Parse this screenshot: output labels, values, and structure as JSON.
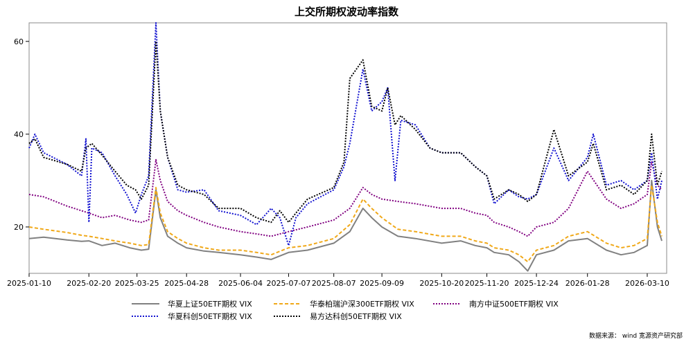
{
  "chart_data": {
    "type": "line",
    "title": "上交所期权波动率指数",
    "xlabel": "",
    "ylabel": "",
    "ylim": [
      10,
      64
    ],
    "yticks": [
      20,
      40,
      60
    ],
    "grid": false,
    "legend_position": "bottom",
    "x_ticks": [
      "2025-01-10",
      "2025-02-20",
      "2025-03-25",
      "2025-04-28",
      "2025-06-04",
      "2025-07-07",
      "2025-08-07",
      "2025-09-09",
      "2025-10-20",
      "2025-11-20",
      "2025-12-24",
      "2026-01-28",
      "2026-03-10"
    ],
    "x_range": [
      "2025-01-10",
      "2026-03-20"
    ],
    "source_note": "数据来源： wind  宽源资产研究部",
    "series": [
      {
        "name": "华夏上证50ETF期权 VIX",
        "color": "#808080",
        "dash": "solid",
        "points": [
          [
            "2025-01-10",
            17.5
          ],
          [
            "2025-01-20",
            17.8
          ],
          [
            "2025-02-05",
            17.2
          ],
          [
            "2025-02-15",
            16.9
          ],
          [
            "2025-02-20",
            17.0
          ],
          [
            "2025-03-01",
            16.0
          ],
          [
            "2025-03-10",
            16.5
          ],
          [
            "2025-03-20",
            15.5
          ],
          [
            "2025-03-28",
            15.0
          ],
          [
            "2025-04-02",
            15.2
          ],
          [
            "2025-04-07",
            28.0
          ],
          [
            "2025-04-10",
            22.0
          ],
          [
            "2025-04-15",
            18.0
          ],
          [
            "2025-04-22",
            16.5
          ],
          [
            "2025-04-28",
            15.5
          ],
          [
            "2025-05-10",
            14.8
          ],
          [
            "2025-05-20",
            14.5
          ],
          [
            "2025-06-04",
            14.0
          ],
          [
            "2025-06-15",
            13.5
          ],
          [
            "2025-06-25",
            13.0
          ],
          [
            "2025-07-07",
            14.5
          ],
          [
            "2025-07-20",
            15.0
          ],
          [
            "2025-08-07",
            16.5
          ],
          [
            "2025-08-18",
            19.0
          ],
          [
            "2025-08-27",
            24.0
          ],
          [
            "2025-09-02",
            22.0
          ],
          [
            "2025-09-09",
            20.0
          ],
          [
            "2025-09-20",
            18.0
          ],
          [
            "2025-10-02",
            17.5
          ],
          [
            "2025-10-20",
            16.5
          ],
          [
            "2025-11-02",
            17.0
          ],
          [
            "2025-11-12",
            16.0
          ],
          [
            "2025-11-20",
            15.5
          ],
          [
            "2025-11-25",
            14.5
          ],
          [
            "2025-12-05",
            14.0
          ],
          [
            "2025-12-12",
            12.5
          ],
          [
            "2025-12-18",
            10.5
          ],
          [
            "2025-12-24",
            14.0
          ],
          [
            "2026-01-05",
            15.0
          ],
          [
            "2026-01-15",
            17.0
          ],
          [
            "2026-01-28",
            17.5
          ],
          [
            "2026-02-10",
            15.0
          ],
          [
            "2026-02-20",
            14.0
          ],
          [
            "2026-03-01",
            14.5
          ],
          [
            "2026-03-10",
            16.0
          ],
          [
            "2026-03-13",
            30.0
          ],
          [
            "2026-03-17",
            20.0
          ],
          [
            "2026-03-20",
            17.0
          ]
        ]
      },
      {
        "name": "华泰柏瑞沪深300ETF期权 VIX",
        "color": "#F0A818",
        "dash": "5,3",
        "points": [
          [
            "2025-01-10",
            20.0
          ],
          [
            "2025-01-20",
            19.5
          ],
          [
            "2025-02-05",
            18.8
          ],
          [
            "2025-02-15",
            18.2
          ],
          [
            "2025-02-20",
            18.0
          ],
          [
            "2025-03-01",
            17.5
          ],
          [
            "2025-03-10",
            17.0
          ],
          [
            "2025-03-20",
            16.5
          ],
          [
            "2025-03-28",
            16.0
          ],
          [
            "2025-04-02",
            16.2
          ],
          [
            "2025-04-07",
            28.5
          ],
          [
            "2025-04-10",
            23.0
          ],
          [
            "2025-04-15",
            19.0
          ],
          [
            "2025-04-22",
            17.5
          ],
          [
            "2025-04-28",
            16.5
          ],
          [
            "2025-05-10",
            15.5
          ],
          [
            "2025-05-20",
            15.0
          ],
          [
            "2025-06-04",
            15.0
          ],
          [
            "2025-06-15",
            14.5
          ],
          [
            "2025-06-25",
            14.0
          ],
          [
            "2025-07-07",
            15.5
          ],
          [
            "2025-07-20",
            16.0
          ],
          [
            "2025-08-07",
            17.5
          ],
          [
            "2025-08-18",
            20.5
          ],
          [
            "2025-08-27",
            26.0
          ],
          [
            "2025-09-02",
            24.0
          ],
          [
            "2025-09-09",
            22.0
          ],
          [
            "2025-09-20",
            19.5
          ],
          [
            "2025-10-02",
            19.0
          ],
          [
            "2025-10-20",
            18.0
          ],
          [
            "2025-11-02",
            18.0
          ],
          [
            "2025-11-12",
            17.0
          ],
          [
            "2025-11-20",
            16.5
          ],
          [
            "2025-11-25",
            15.5
          ],
          [
            "2025-12-05",
            15.0
          ],
          [
            "2025-12-12",
            14.0
          ],
          [
            "2025-12-18",
            12.5
          ],
          [
            "2025-12-24",
            15.0
          ],
          [
            "2026-01-05",
            16.0
          ],
          [
            "2026-01-15",
            18.0
          ],
          [
            "2026-01-28",
            19.0
          ],
          [
            "2026-02-10",
            16.5
          ],
          [
            "2026-02-20",
            15.5
          ],
          [
            "2026-03-01",
            16.0
          ],
          [
            "2026-03-10",
            17.5
          ],
          [
            "2026-03-13",
            29.0
          ],
          [
            "2026-03-17",
            21.0
          ],
          [
            "2026-03-20",
            18.0
          ]
        ]
      },
      {
        "name": "南方中证500ETF期权 VIX",
        "color": "#800080",
        "dash": "2,2",
        "points": [
          [
            "2025-01-10",
            27.0
          ],
          [
            "2025-01-20",
            26.5
          ],
          [
            "2025-02-05",
            24.5
          ],
          [
            "2025-02-15",
            23.5
          ],
          [
            "2025-02-20",
            23.0
          ],
          [
            "2025-03-01",
            22.0
          ],
          [
            "2025-03-10",
            22.5
          ],
          [
            "2025-03-20",
            21.5
          ],
          [
            "2025-03-28",
            21.0
          ],
          [
            "2025-04-02",
            21.5
          ],
          [
            "2025-04-07",
            34.5
          ],
          [
            "2025-04-10",
            30.0
          ],
          [
            "2025-04-15",
            25.5
          ],
          [
            "2025-04-22",
            23.5
          ],
          [
            "2025-04-28",
            22.5
          ],
          [
            "2025-05-10",
            21.0
          ],
          [
            "2025-05-20",
            20.0
          ],
          [
            "2025-06-04",
            19.0
          ],
          [
            "2025-06-15",
            18.5
          ],
          [
            "2025-06-25",
            18.0
          ],
          [
            "2025-07-07",
            19.0
          ],
          [
            "2025-07-20",
            20.0
          ],
          [
            "2025-08-07",
            21.5
          ],
          [
            "2025-08-18",
            24.0
          ],
          [
            "2025-08-27",
            28.5
          ],
          [
            "2025-09-02",
            27.0
          ],
          [
            "2025-09-09",
            26.0
          ],
          [
            "2025-09-20",
            25.5
          ],
          [
            "2025-10-02",
            25.0
          ],
          [
            "2025-10-20",
            24.0
          ],
          [
            "2025-11-02",
            24.0
          ],
          [
            "2025-11-12",
            23.0
          ],
          [
            "2025-11-20",
            22.5
          ],
          [
            "2025-11-25",
            21.0
          ],
          [
            "2025-12-05",
            20.0
          ],
          [
            "2025-12-12",
            19.0
          ],
          [
            "2025-12-18",
            18.0
          ],
          [
            "2025-12-24",
            20.0
          ],
          [
            "2026-01-05",
            21.0
          ],
          [
            "2026-01-15",
            24.0
          ],
          [
            "2026-01-28",
            32.0
          ],
          [
            "2026-02-10",
            26.0
          ],
          [
            "2026-02-20",
            24.0
          ],
          [
            "2026-03-01",
            25.0
          ],
          [
            "2026-03-10",
            27.0
          ],
          [
            "2026-03-13",
            34.0
          ],
          [
            "2026-03-17",
            29.0
          ],
          [
            "2026-03-20",
            28.0
          ]
        ]
      },
      {
        "name": "华夏科创50ETF期权  VIX",
        "color": "#1010D0",
        "dash": "2,2",
        "points": [
          [
            "2025-01-10",
            37.0
          ],
          [
            "2025-01-14",
            40.0
          ],
          [
            "2025-01-20",
            36.0
          ],
          [
            "2025-02-05",
            33.5
          ],
          [
            "2025-02-15",
            31.0
          ],
          [
            "2025-02-18",
            39.0
          ],
          [
            "2025-02-20",
            21.0
          ],
          [
            "2025-02-22",
            37.0
          ],
          [
            "2025-03-01",
            36.0
          ],
          [
            "2025-03-10",
            31.0
          ],
          [
            "2025-03-18",
            27.0
          ],
          [
            "2025-03-24",
            23.0
          ],
          [
            "2025-03-28",
            27.0
          ],
          [
            "2025-04-02",
            31.0
          ],
          [
            "2025-04-07",
            64.0
          ],
          [
            "2025-04-10",
            45.0
          ],
          [
            "2025-04-15",
            35.0
          ],
          [
            "2025-04-22",
            28.0
          ],
          [
            "2025-04-28",
            27.5
          ],
          [
            "2025-05-10",
            28.0
          ],
          [
            "2025-05-20",
            23.5
          ],
          [
            "2025-06-04",
            22.5
          ],
          [
            "2025-06-15",
            20.5
          ],
          [
            "2025-06-25",
            24.0
          ],
          [
            "2025-07-01",
            22.0
          ],
          [
            "2025-07-07",
            16.0
          ],
          [
            "2025-07-12",
            22.0
          ],
          [
            "2025-07-20",
            25.0
          ],
          [
            "2025-08-07",
            28.0
          ],
          [
            "2025-08-14",
            33.0
          ],
          [
            "2025-08-18",
            38.0
          ],
          [
            "2025-08-27",
            54.0
          ],
          [
            "2025-09-02",
            45.0
          ],
          [
            "2025-09-09",
            47.0
          ],
          [
            "2025-09-13",
            50.0
          ],
          [
            "2025-09-18",
            30.0
          ],
          [
            "2025-09-22",
            43.0
          ],
          [
            "2025-10-02",
            42.0
          ],
          [
            "2025-10-12",
            37.0
          ],
          [
            "2025-10-20",
            36.0
          ],
          [
            "2025-11-02",
            36.0
          ],
          [
            "2025-11-12",
            33.0
          ],
          [
            "2025-11-20",
            31.0
          ],
          [
            "2025-11-25",
            25.0
          ],
          [
            "2025-12-05",
            28.0
          ],
          [
            "2025-12-12",
            26.5
          ],
          [
            "2025-12-18",
            26.0
          ],
          [
            "2025-12-24",
            27.0
          ],
          [
            "2026-01-05",
            37.0
          ],
          [
            "2026-01-15",
            30.0
          ],
          [
            "2026-01-28",
            35.0
          ],
          [
            "2026-02-01",
            40.0
          ],
          [
            "2026-02-10",
            29.0
          ],
          [
            "2026-02-20",
            30.0
          ],
          [
            "2026-03-01",
            28.0
          ],
          [
            "2026-03-10",
            30.0
          ],
          [
            "2026-03-13",
            36.0
          ],
          [
            "2026-03-17",
            26.0
          ],
          [
            "2026-03-20",
            30.0
          ]
        ]
      },
      {
        "name": "易方达科创50ETF期权  VIX",
        "color": "#000000",
        "dash": "2,2",
        "points": [
          [
            "2025-01-10",
            38.0
          ],
          [
            "2025-01-14",
            39.0
          ],
          [
            "2025-01-20",
            35.0
          ],
          [
            "2025-02-05",
            33.5
          ],
          [
            "2025-02-15",
            32.0
          ],
          [
            "2025-02-18",
            37.0
          ],
          [
            "2025-02-22",
            38.0
          ],
          [
            "2025-03-01",
            35.5
          ],
          [
            "2025-03-10",
            32.0
          ],
          [
            "2025-03-18",
            29.0
          ],
          [
            "2025-03-24",
            28.0
          ],
          [
            "2025-03-28",
            26.0
          ],
          [
            "2025-04-02",
            29.0
          ],
          [
            "2025-04-07",
            60.0
          ],
          [
            "2025-04-10",
            45.0
          ],
          [
            "2025-04-15",
            35.0
          ],
          [
            "2025-04-22",
            29.0
          ],
          [
            "2025-04-28",
            28.0
          ],
          [
            "2025-05-10",
            27.0
          ],
          [
            "2025-05-20",
            24.0
          ],
          [
            "2025-06-04",
            24.0
          ],
          [
            "2025-06-15",
            22.0
          ],
          [
            "2025-06-25",
            21.0
          ],
          [
            "2025-07-01",
            23.5
          ],
          [
            "2025-07-07",
            21.0
          ],
          [
            "2025-07-12",
            23.0
          ],
          [
            "2025-07-20",
            26.0
          ],
          [
            "2025-08-07",
            28.5
          ],
          [
            "2025-08-14",
            34.0
          ],
          [
            "2025-08-18",
            52.0
          ],
          [
            "2025-08-27",
            56.0
          ],
          [
            "2025-09-02",
            46.0
          ],
          [
            "2025-09-09",
            45.0
          ],
          [
            "2025-09-13",
            50.0
          ],
          [
            "2025-09-18",
            42.0
          ],
          [
            "2025-09-22",
            44.0
          ],
          [
            "2025-10-02",
            41.0
          ],
          [
            "2025-10-12",
            37.0
          ],
          [
            "2025-10-20",
            36.0
          ],
          [
            "2025-11-02",
            36.0
          ],
          [
            "2025-11-12",
            33.0
          ],
          [
            "2025-11-20",
            31.0
          ],
          [
            "2025-11-25",
            26.0
          ],
          [
            "2025-12-05",
            28.0
          ],
          [
            "2025-12-12",
            27.0
          ],
          [
            "2025-12-18",
            25.5
          ],
          [
            "2025-12-24",
            27.0
          ],
          [
            "2026-01-05",
            41.0
          ],
          [
            "2026-01-15",
            31.0
          ],
          [
            "2026-01-28",
            34.0
          ],
          [
            "2026-02-01",
            38.0
          ],
          [
            "2026-02-10",
            28.0
          ],
          [
            "2026-02-20",
            29.0
          ],
          [
            "2026-03-01",
            27.0
          ],
          [
            "2026-03-10",
            30.0
          ],
          [
            "2026-03-13",
            40.0
          ],
          [
            "2026-03-17",
            29.0
          ],
          [
            "2026-03-20",
            32.0
          ]
        ]
      }
    ]
  }
}
